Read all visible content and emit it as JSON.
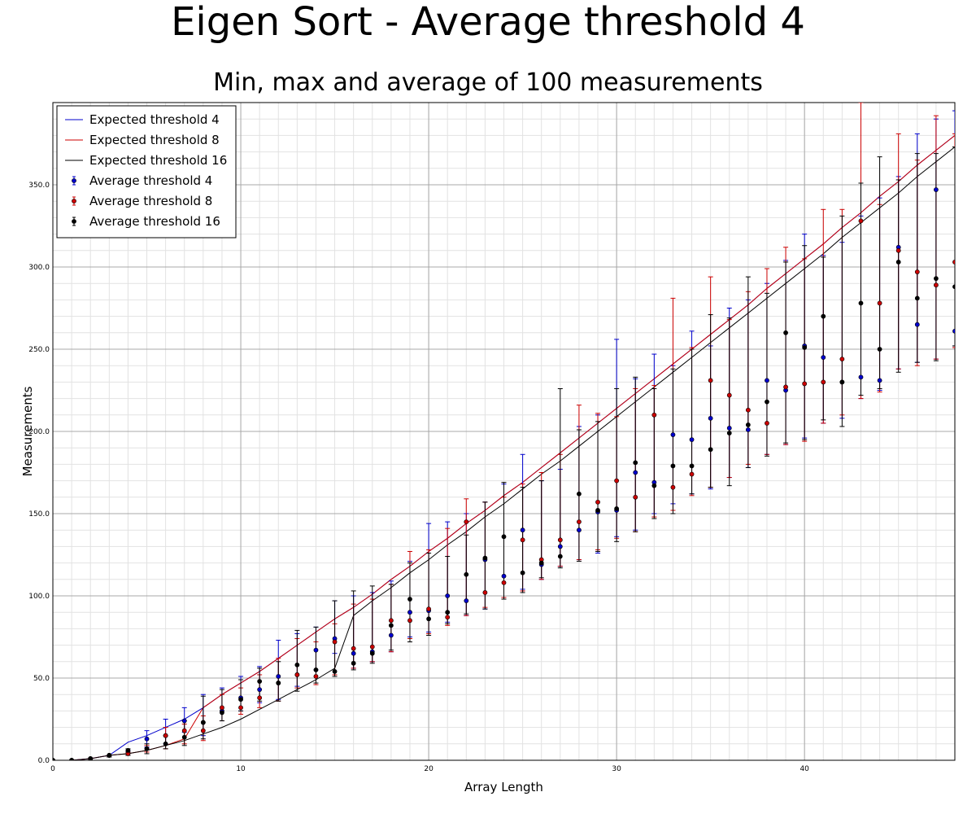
{
  "chart_data": {
    "type": "scatter",
    "title": "Eigen Sort - Average threshold 4",
    "subtitle": "Min, max and average of 100 measurements",
    "xlabel": "Array Length",
    "ylabel": "Measurements",
    "xlim": [
      0,
      48
    ],
    "ylim": [
      0,
      400
    ],
    "x_ticks": [
      0,
      10,
      20,
      30,
      40
    ],
    "x_tick_labels": [
      "0",
      "10",
      "20",
      "30",
      "40"
    ],
    "y_ticks": [
      0,
      50,
      100,
      150,
      200,
      250,
      300,
      350
    ],
    "y_tick_labels": [
      "0.0",
      "50.0",
      "100.0",
      "150.0",
      "200.0",
      "250.0",
      "300.0",
      "350.0"
    ],
    "grid": true,
    "legend_position": "top-left",
    "colors": {
      "threshold4": "#0000cc",
      "threshold8": "#cc0000",
      "threshold16": "#000000"
    },
    "lines": [
      {
        "name": "Expected threshold 4",
        "color": "#0000cc",
        "x": [
          0,
          1,
          2,
          3,
          4,
          5,
          6,
          7,
          8,
          9,
          10,
          11,
          12,
          13,
          14,
          15,
          16,
          17,
          18,
          19,
          20,
          21,
          22,
          23,
          24,
          25,
          26,
          27,
          28,
          29,
          30,
          31,
          32,
          33,
          34,
          35,
          36,
          37,
          38,
          39,
          40,
          41,
          42,
          43,
          44,
          45,
          46,
          47,
          48
        ],
        "y": [
          0,
          0,
          1,
          3,
          11,
          15,
          20,
          25,
          32,
          40,
          47,
          54,
          62,
          70,
          78,
          86,
          93,
          101,
          110,
          118,
          127,
          135,
          144,
          152,
          161,
          169,
          178,
          187,
          196,
          205,
          214,
          223,
          232,
          241,
          250,
          259,
          268,
          277,
          287,
          296,
          305,
          314,
          324,
          333,
          343,
          352,
          362,
          371,
          380
        ]
      },
      {
        "name": "Expected threshold 8",
        "color": "#cc0000",
        "x": [
          0,
          1,
          2,
          3,
          4,
          5,
          6,
          7,
          8,
          9,
          10,
          11,
          12,
          13,
          14,
          15,
          16,
          17,
          18,
          19,
          20,
          21,
          22,
          23,
          24,
          25,
          26,
          27,
          28,
          29,
          30,
          31,
          32,
          33,
          34,
          35,
          36,
          37,
          38,
          39,
          40,
          41,
          42,
          43,
          44,
          45,
          46,
          47,
          48
        ],
        "y": [
          0,
          0,
          1,
          3,
          4,
          6,
          9,
          13,
          32,
          40,
          47,
          54,
          62,
          70,
          78,
          86,
          93,
          101,
          110,
          118,
          127,
          135,
          144,
          152,
          161,
          169,
          178,
          187,
          196,
          205,
          214,
          223,
          232,
          241,
          250,
          259,
          268,
          277,
          287,
          296,
          305,
          314,
          324,
          333,
          343,
          352,
          362,
          371,
          380
        ]
      },
      {
        "name": "Expected threshold 16",
        "color": "#000000",
        "x": [
          0,
          1,
          2,
          3,
          4,
          5,
          6,
          7,
          8,
          9,
          10,
          11,
          12,
          13,
          14,
          15,
          16,
          17,
          18,
          19,
          20,
          21,
          22,
          23,
          24,
          25,
          26,
          27,
          28,
          29,
          30,
          31,
          32,
          33,
          34,
          35,
          36,
          37,
          38,
          39,
          40,
          41,
          42,
          43,
          44,
          45,
          46,
          47,
          48
        ],
        "y": [
          0,
          0,
          1,
          3,
          4,
          6,
          9,
          12,
          16,
          20,
          25,
          31,
          37,
          43,
          49,
          56,
          88,
          97,
          105,
          114,
          122,
          131,
          139,
          148,
          156,
          165,
          174,
          182,
          191,
          200,
          209,
          218,
          227,
          236,
          245,
          254,
          263,
          272,
          281,
          290,
          299,
          308,
          318,
          327,
          336,
          345,
          355,
          364,
          373
        ]
      }
    ],
    "series": [
      {
        "name": "Average threshold 4",
        "color": "#0000cc",
        "x": [
          0,
          1,
          2,
          3,
          4,
          5,
          6,
          7,
          8,
          9,
          10,
          11,
          12,
          13,
          14,
          15,
          16,
          17,
          18,
          19,
          20,
          21,
          22,
          23,
          24,
          25,
          26,
          27,
          28,
          29,
          30,
          31,
          32,
          33,
          34,
          35,
          36,
          37,
          38,
          39,
          40,
          41,
          42,
          43,
          44,
          45,
          46,
          47,
          48
        ],
        "y": [
          0,
          0,
          1,
          3,
          5,
          13,
          15,
          24,
          23,
          30,
          38,
          43,
          51,
          52,
          67,
          74,
          65,
          66,
          76,
          90,
          91,
          100,
          97,
          122,
          112,
          140,
          119,
          130,
          140,
          151,
          152,
          175,
          169,
          198,
          195,
          208,
          202,
          201,
          231,
          225,
          252,
          245,
          230,
          233,
          231,
          312,
          265,
          347,
          261
        ],
        "min": [
          0,
          0,
          0,
          2,
          3,
          8,
          10,
          17,
          15,
          24,
          30,
          35,
          37,
          45,
          55,
          65,
          56,
          60,
          66,
          75,
          78,
          84,
          88,
          92,
          99,
          104,
          110,
          118,
          122,
          126,
          136,
          140,
          150,
          156,
          162,
          165,
          172,
          178,
          186,
          192,
          196,
          205,
          208,
          220,
          225,
          238,
          242,
          244,
          252
        ],
        "max": [
          0,
          0,
          1,
          3,
          6,
          18,
          25,
          32,
          40,
          44,
          51,
          57,
          73,
          77,
          81,
          97,
          100,
          102,
          109,
          121,
          144,
          145,
          150,
          157,
          168,
          186,
          170,
          177,
          203,
          210,
          256,
          232,
          247,
          240,
          261,
          252,
          275,
          280,
          290,
          304,
          320,
          307,
          315,
          331,
          342,
          355,
          381,
          390,
          395
        ]
      },
      {
        "name": "Average threshold 8",
        "color": "#cc0000",
        "x": [
          0,
          1,
          2,
          3,
          4,
          5,
          6,
          7,
          8,
          9,
          10,
          11,
          12,
          13,
          14,
          15,
          16,
          17,
          18,
          19,
          20,
          21,
          22,
          23,
          24,
          25,
          26,
          27,
          28,
          29,
          30,
          31,
          32,
          33,
          34,
          35,
          36,
          37,
          38,
          39,
          40,
          41,
          42,
          43,
          44,
          45,
          46,
          47,
          48
        ],
        "y": [
          0,
          0,
          1,
          3,
          4,
          7,
          15,
          18,
          18,
          32,
          32,
          38,
          47,
          52,
          51,
          72,
          68,
          69,
          85,
          85,
          92,
          87,
          145,
          102,
          108,
          134,
          122,
          134,
          145,
          157,
          170,
          160,
          210,
          166,
          174,
          231,
          222,
          213,
          205,
          227,
          229,
          230,
          244,
          328,
          278,
          310,
          297,
          289,
          303
        ],
        "min": [
          0,
          0,
          0,
          2,
          3,
          5,
          7,
          10,
          12,
          24,
          28,
          32,
          36,
          44,
          46,
          52,
          56,
          60,
          66,
          74,
          77,
          82,
          88,
          93,
          99,
          103,
          110,
          118,
          122,
          128,
          135,
          139,
          148,
          152,
          161,
          166,
          172,
          180,
          186,
          192,
          194,
          205,
          210,
          220,
          224,
          238,
          240,
          244,
          251
        ],
        "max": [
          0,
          0,
          1,
          3,
          5,
          9,
          20,
          22,
          27,
          40,
          44,
          52,
          62,
          74,
          72,
          83,
          95,
          98,
          107,
          127,
          128,
          141,
          159,
          157,
          160,
          168,
          175,
          186,
          216,
          211,
          209,
          226,
          228,
          281,
          251,
          294,
          268,
          285,
          299,
          312,
          305,
          335,
          335,
          400,
          338,
          381,
          365,
          392,
          381
        ]
      },
      {
        "name": "Average threshold 16",
        "color": "#000000",
        "x": [
          0,
          1,
          2,
          3,
          4,
          5,
          6,
          7,
          8,
          9,
          10,
          11,
          12,
          13,
          14,
          15,
          16,
          17,
          18,
          19,
          20,
          21,
          22,
          23,
          24,
          25,
          26,
          27,
          28,
          29,
          30,
          31,
          32,
          33,
          34,
          35,
          36,
          37,
          38,
          39,
          40,
          41,
          42,
          43,
          44,
          45,
          46,
          47,
          48
        ],
        "y": [
          0,
          0,
          1,
          3,
          6,
          7,
          10,
          14,
          23,
          29,
          37,
          48,
          47,
          58,
          55,
          54,
          59,
          65,
          82,
          98,
          86,
          90,
          113,
          123,
          136,
          114,
          120,
          124,
          162,
          152,
          153,
          181,
          167,
          179,
          179,
          189,
          199,
          204,
          218,
          260,
          251,
          270,
          230,
          278,
          250,
          303,
          281,
          293,
          288
        ],
        "min": [
          0,
          0,
          0,
          2,
          3,
          4,
          7,
          9,
          13,
          24,
          30,
          36,
          36,
          42,
          47,
          51,
          55,
          59,
          67,
          72,
          76,
          83,
          89,
          92,
          98,
          102,
          111,
          117,
          121,
          127,
          133,
          139,
          147,
          150,
          162,
          166,
          167,
          178,
          185,
          193,
          195,
          207,
          203,
          222,
          226,
          236,
          242,
          243,
          252
        ],
        "max": [
          0,
          0,
          1,
          3,
          7,
          10,
          15,
          24,
          39,
          43,
          49,
          56,
          60,
          79,
          81,
          97,
          103,
          106,
          107,
          120,
          126,
          124,
          137,
          157,
          169,
          166,
          170,
          226,
          201,
          206,
          226,
          233,
          226,
          238,
          250,
          271,
          269,
          294,
          284,
          303,
          313,
          306,
          331,
          351,
          367,
          353,
          369,
          369,
          373
        ]
      }
    ]
  }
}
